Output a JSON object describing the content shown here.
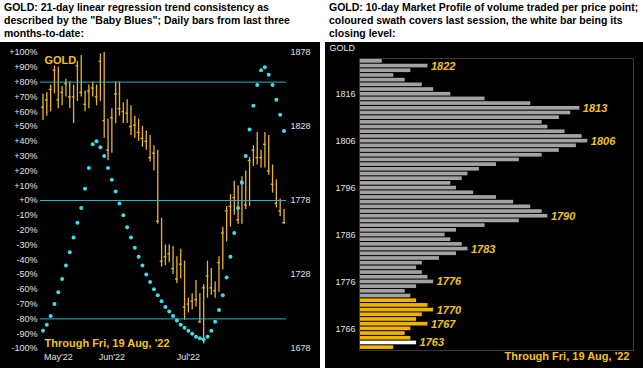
{
  "chart_data": [
    {
      "type": "bar",
      "title": "GOLD: 21-day linear regression trend consistency as described by the \"Baby Blues\"; Daily bars from last three months-to-date:",
      "annotations": [
        "GOLD",
        "Through Fri, 19 Aug, '22"
      ],
      "categories": [
        null,
        null,
        null,
        null,
        "May'22",
        null,
        null,
        null,
        null,
        null,
        null,
        null,
        null,
        null,
        null,
        null,
        null,
        null,
        "Jun'22",
        null,
        null,
        null,
        null,
        null,
        null,
        null,
        null,
        null,
        null,
        null,
        null,
        null,
        null,
        null,
        null,
        null,
        null,
        null,
        "Jul'22",
        null,
        null,
        null,
        null,
        null,
        null,
        null,
        null,
        null,
        null,
        null,
        null,
        null,
        null,
        null,
        null,
        null,
        null,
        null,
        null,
        null,
        null,
        null,
        null,
        null
      ],
      "ylim": [
        -100,
        100
      ],
      "yticks": [
        {
          "value": 100,
          "label": "+100%"
        },
        {
          "value": 90,
          "label": "+90%"
        },
        {
          "value": 80,
          "label": "+80%"
        },
        {
          "value": 70,
          "label": "+70%"
        },
        {
          "value": 60,
          "label": "+60%"
        },
        {
          "value": 50,
          "label": "+50%"
        },
        {
          "value": 40,
          "label": "+40%"
        },
        {
          "value": 30,
          "label": "+30%"
        },
        {
          "value": 20,
          "label": "+20%"
        },
        {
          "value": 10,
          "label": "+10%"
        },
        {
          "value": 0,
          "label": "+0%"
        },
        {
          "value": -10,
          "label": "-10%"
        },
        {
          "value": -20,
          "label": "-20%"
        },
        {
          "value": -30,
          "label": "-30%"
        },
        {
          "value": -40,
          "label": "-40%"
        },
        {
          "value": -50,
          "label": "-50%"
        },
        {
          "value": -60,
          "label": "-60%"
        },
        {
          "value": -70,
          "label": "-70%"
        },
        {
          "value": -80,
          "label": "-80%"
        },
        {
          "value": -90,
          "label": "-90%"
        },
        {
          "value": -100,
          "label": "-100%"
        }
      ],
      "y2lim": [
        1678,
        1878
      ],
      "y2ticks": [
        1878,
        1828,
        1778,
        1728,
        1678
      ],
      "rules": {
        "values": [
          80,
          0,
          -80
        ],
        "color": "#2ab4c8"
      },
      "series": [
        {
          "type": "scatter",
          "color": "#3fdcec",
          "marker": "circle",
          "values": [
            -88,
            -84,
            -78,
            -70,
            -62,
            -53,
            -44,
            -35,
            -25,
            -15,
            -5,
            8,
            22,
            38,
            40,
            36,
            30,
            22,
            14,
            6,
            -2,
            -10,
            -18,
            -25,
            -32,
            -38,
            -44,
            -50,
            -55,
            -60,
            -64,
            -68,
            -72,
            -75,
            -78,
            -81,
            -84,
            -86,
            -88,
            -90,
            -92,
            -93,
            -94,
            -92,
            -88,
            -82,
            -74,
            -64,
            -52,
            -38,
            -22,
            -5,
            12,
            30,
            48,
            64,
            78,
            88,
            90,
            85,
            78,
            68,
            58,
            47
          ]
        },
        {
          "type": "bar",
          "axis": "y2",
          "color": "#e8b52a",
          "high": [
            1850,
            1851,
            1856,
            1869,
            1868,
            1855,
            1860,
            1858,
            1856,
            1872,
            1876,
            1852,
            1856,
            1858,
            1856,
            1877,
            1879,
            1833,
            1840,
            1858,
            1858,
            1844,
            1846,
            1842,
            1835,
            1833,
            1828,
            1825,
            1822,
            1815,
            1812,
            1766,
            1748,
            1748,
            1747,
            1740,
            1745,
            1737,
            1712,
            1715,
            1724,
            1715,
            1721,
            1737,
            1732,
            1723,
            1740,
            1760,
            1774,
            1782,
            1791,
            1788,
            1794,
            1798,
            1807,
            1815,
            1824,
            1812,
            1824,
            1822,
            1802,
            1792,
            1779,
            1772
          ],
          "low": [
            1832,
            1835,
            1838,
            1850,
            1840,
            1842,
            1848,
            1840,
            1830,
            1845,
            1848,
            1838,
            1840,
            1848,
            1842,
            1845,
            1820,
            1805,
            1810,
            1830,
            1835,
            1830,
            1830,
            1822,
            1820,
            1818,
            1814,
            1812,
            1804,
            1798,
            1762,
            1733,
            1734,
            1736,
            1728,
            1722,
            1725,
            1697,
            1702,
            1704,
            1706,
            1695,
            1681,
            1712,
            1714,
            1712,
            1716,
            1731,
            1750,
            1760,
            1768,
            1762,
            1762,
            1772,
            1774,
            1801,
            1802,
            1800,
            1800,
            1795,
            1783,
            1773,
            1767,
            1762
          ],
          "close": [
            1841,
            1846,
            1853,
            1866,
            1846,
            1851,
            1857,
            1848,
            1848,
            1869,
            1851,
            1843,
            1852,
            1854,
            1848,
            1872,
            1832,
            1812,
            1834,
            1850,
            1840,
            1838,
            1837,
            1828,
            1829,
            1824,
            1820,
            1818,
            1807,
            1810,
            1764,
            1737,
            1740,
            1742,
            1732,
            1725,
            1735,
            1706,
            1708,
            1710,
            1711,
            1696,
            1719,
            1727,
            1719,
            1717,
            1736,
            1756,
            1771,
            1774,
            1780,
            1765,
            1791,
            1775,
            1805,
            1812,
            1807,
            1807,
            1816,
            1798,
            1789,
            1776,
            1771,
            1763
          ]
        }
      ]
    },
    {
      "type": "bar",
      "orientation": "horizontal",
      "title": "GOLD: 10-day Market Profile of volume traded per price point; coloured swath covers last session, the white bar being its closing level:",
      "annotations": [
        "GOLD",
        "Through Fri, 19 Aug, '22"
      ],
      "tick_labels": "y",
      "categories": [
        1823,
        1822,
        1821,
        1820,
        1819,
        1818,
        1817,
        1816,
        1815,
        1814,
        1813,
        1812,
        1811,
        1810,
        1809,
        1808,
        1807,
        1806,
        1805,
        1804,
        1803,
        1802,
        1801,
        1800,
        1799,
        1798,
        1797,
        1796,
        1795,
        1794,
        1793,
        1792,
        1791,
        1790,
        1789,
        1788,
        1787,
        1786,
        1785,
        1784,
        1783,
        1782,
        1781,
        1780,
        1779,
        1778,
        1777,
        1776,
        1775,
        1774,
        1773,
        1772,
        1771,
        1770,
        1769,
        1768,
        1767,
        1766,
        1765,
        1764,
        1763,
        1762
      ],
      "values": [
        20,
        60,
        45,
        30,
        40,
        55,
        65,
        80,
        110,
        150,
        193,
        185,
        175,
        160,
        165,
        180,
        195,
        200,
        190,
        175,
        160,
        140,
        120,
        105,
        95,
        90,
        80,
        85,
        100,
        120,
        135,
        150,
        160,
        165,
        140,
        110,
        85,
        75,
        80,
        90,
        95,
        85,
        70,
        55,
        50,
        55,
        60,
        65,
        50,
        40,
        45,
        50,
        60,
        65,
        55,
        50,
        60,
        45,
        40,
        45,
        50,
        30
      ],
      "color": "#a3a3a3",
      "xlim": [
        0,
        240
      ],
      "yticks": [
        1816,
        1806,
        1796,
        1786,
        1776,
        1766
      ],
      "labelled_levels": [
        1822,
        1813,
        1806,
        1790,
        1783,
        1776,
        1770,
        1767,
        1763
      ],
      "swath": {
        "range": [
          1762,
          1772
        ],
        "color": "#f0b400"
      },
      "close": {
        "value": 1763,
        "color": "#ffffff"
      }
    }
  ]
}
